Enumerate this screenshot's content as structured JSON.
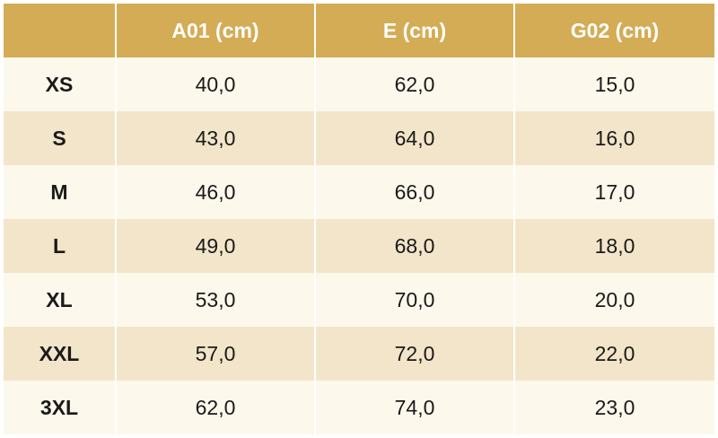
{
  "table": {
    "header": [
      "A01 (cm)",
      "E (cm)",
      "G02 (cm)"
    ],
    "rows": [
      [
        "XS",
        "40,0",
        "62,0",
        "15,0"
      ],
      [
        "S",
        "43,0",
        "64,0",
        "16,0"
      ],
      [
        "M",
        "46,0",
        "66,0",
        "17,0"
      ],
      [
        "L",
        "49,0",
        "68,0",
        "18,0"
      ],
      [
        "XL",
        "53,0",
        "70,0",
        "20,0"
      ],
      [
        "XXL",
        "57,0",
        "72,0",
        "22,0"
      ],
      [
        "3XL",
        "62,0",
        "74,0",
        "23,0"
      ]
    ]
  }
}
